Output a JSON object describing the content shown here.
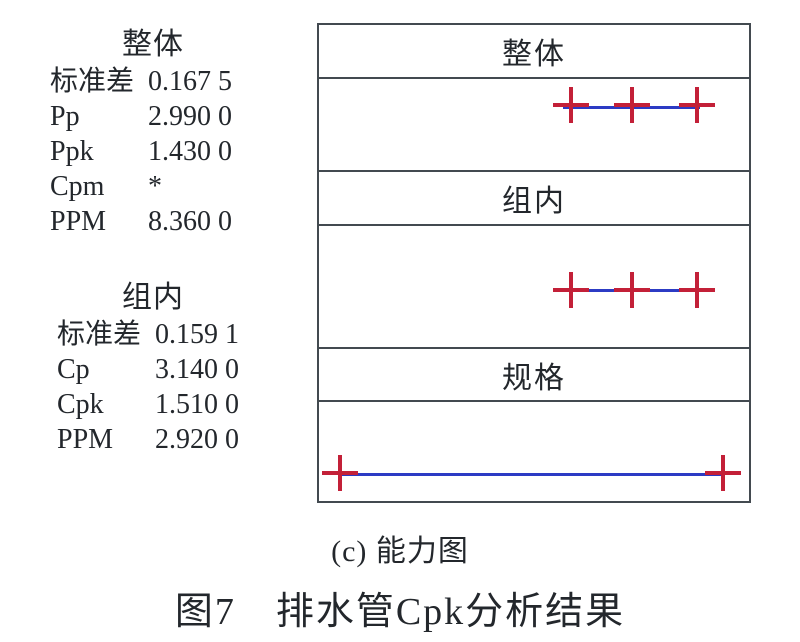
{
  "stats": {
    "overall": {
      "title": "整体",
      "rows": [
        {
          "label": "标准差",
          "value": "0.167 5"
        },
        {
          "label": "Pp",
          "value": "2.990 0"
        },
        {
          "label": "Ppk",
          "value": "1.430 0"
        },
        {
          "label": "Cpm",
          "value": "*"
        },
        {
          "label": "PPM",
          "value": "8.360 0"
        }
      ]
    },
    "within": {
      "title": "组内",
      "rows": [
        {
          "label": "标准差",
          "value": "0.159 1"
        },
        {
          "label": "Cp",
          "value": "3.140 0"
        },
        {
          "label": "Cpk",
          "value": "1.510 0"
        },
        {
          "label": "PPM",
          "value": "2.920 0"
        }
      ]
    }
  },
  "chart_data": {
    "type": "interval",
    "title": "能力图",
    "description": "Capability comparison plot: three stacked panels (Overall, Within, Specs), each showing an interval marked by red crosses joined by a blue line. No axis tick labels are shown.",
    "axis_ticks_visible": false,
    "panels": [
      {
        "label": "整体",
        "markers": [
          0.586,
          0.728,
          0.879
        ],
        "line": [
          0.568,
          0.886
        ],
        "line_dy": 2,
        "marker_y": 0.29
      },
      {
        "label": "组内",
        "markers": [
          0.586,
          0.728,
          0.879
        ],
        "line": [
          0.586,
          0.879
        ],
        "line_dy": 0,
        "marker_y": 0.53
      },
      {
        "label": "规格",
        "markers": [
          0.049,
          0.94
        ],
        "line": [
          0.053,
          0.937
        ],
        "line_dy": 1,
        "marker_y": 0.72
      }
    ],
    "marker_color": "#c32038",
    "line_color": "#2c3bc4"
  },
  "figure": {
    "caption": "(c) 能力图",
    "title": "图7　排水管Cpk分析结果"
  }
}
